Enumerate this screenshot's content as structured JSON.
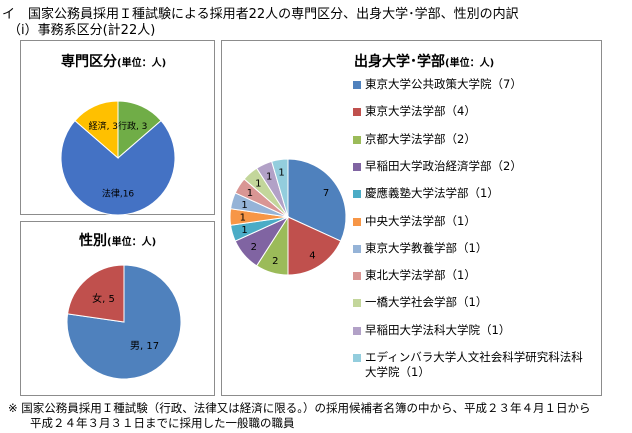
{
  "header": {
    "line1": "イ　国家公務員採用Ｉ種試験による採用者22人の専門区分、出身大学･学部、性別の内訳",
    "line2": "（ⅰ）事務系区分(計22人)"
  },
  "footnote": {
    "line1": "※ 国家公務員採用Ｉ種試験（行政、法律又は経済に限る。）の採用候補者名簿の中から、平成２３年４月１日から",
    "line2": "平成２４年３月３１日までに採用した一般職の職員"
  },
  "chart_data": [
    {
      "type": "pie",
      "title": "専門区分",
      "unit": "(単位：人)",
      "slices": [
        {
          "label": "行政, 3",
          "value": 3,
          "color": "#70ad47"
        },
        {
          "label": "法律,16",
          "value": 16,
          "color": "#4472c4"
        },
        {
          "label": "経済, 3",
          "value": 3,
          "color": "#ffc000"
        }
      ]
    },
    {
      "type": "pie",
      "title": "性別",
      "unit": "(単位：人)",
      "slices": [
        {
          "label": "男, 17",
          "value": 17,
          "color": "#4f81bd"
        },
        {
          "label": "女, 5",
          "value": 5,
          "color": "#c0504d"
        }
      ]
    },
    {
      "type": "pie",
      "title": "出身大学･学部",
      "unit": "(単位：人)",
      "legend_position": "right",
      "slices": [
        {
          "label": "7",
          "value": 7,
          "color": "#4f81bd",
          "legend": "東京大学公共政策大学院（7）"
        },
        {
          "label": "4",
          "value": 4,
          "color": "#c0504d",
          "legend": "東京大学法学部（4）"
        },
        {
          "label": "2",
          "value": 2,
          "color": "#9bbb59",
          "legend": "京都大学法学部（2）"
        },
        {
          "label": "2",
          "value": 2,
          "color": "#8064a2",
          "legend": "早稲田大学政治経済学部（2）"
        },
        {
          "label": "1",
          "value": 1,
          "color": "#4bacc6",
          "legend": "慶應義塾大学法学部（1）"
        },
        {
          "label": "1",
          "value": 1,
          "color": "#f79646",
          "legend": "中央大学法学部（1）"
        },
        {
          "label": "1",
          "value": 1,
          "color": "#95b3d7",
          "legend": "東京大学教養学部（1）"
        },
        {
          "label": "1",
          "value": 1,
          "color": "#d99694",
          "legend": "東北大学法学部（1）"
        },
        {
          "label": "1",
          "value": 1,
          "color": "#c3d69b",
          "legend": "一橋大学社会学部（1）"
        },
        {
          "label": "1",
          "value": 1,
          "color": "#b2a1c7",
          "legend": "早稲田大学法科大学院（1）"
        },
        {
          "label": "1",
          "value": 1,
          "color": "#93cddd",
          "legend": "エディンバラ大学人文社会科学研究科法科",
          "legend2": "大学院（1）"
        }
      ]
    }
  ]
}
